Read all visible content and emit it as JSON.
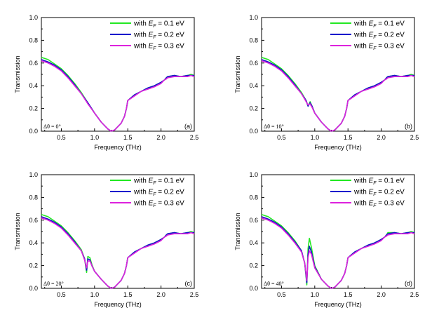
{
  "figure": {
    "y_axis_label": "Transmission",
    "x_axis_label": "Frequency (THz)"
  },
  "legend": {
    "prefix": "with ",
    "symbol": "E",
    "subscript": "F",
    "suffix_template": " = {v} eV"
  },
  "colors": {
    "ef_0_1": "#22e822",
    "ef_0_2": "#1414cc",
    "ef_0_3": "#dd22dd",
    "axis": "#000000"
  },
  "chart_data": [
    {
      "type": "line",
      "panel_label": "(a)",
      "annotation": "Δθ = 0°",
      "xlabel": "Frequency (THz)",
      "ylabel": "Transmission",
      "xlim": [
        0.2,
        2.5
      ],
      "ylim": [
        0.0,
        1.0
      ],
      "x_ticks": [
        "0.5",
        "1.0",
        "1.5",
        "2.0",
        "2.5"
      ],
      "y_ticks": [
        "0.0",
        "0.2",
        "0.4",
        "0.6",
        "0.8",
        "1.0"
      ],
      "legend_position": "top-right",
      "x": [
        0.2,
        0.3,
        0.4,
        0.5,
        0.6,
        0.7,
        0.8,
        0.9,
        1.0,
        1.1,
        1.2,
        1.25,
        1.3,
        1.4,
        1.45,
        1.48,
        1.5,
        1.6,
        1.7,
        1.8,
        1.9,
        2.0,
        2.05,
        2.08,
        2.1,
        2.2,
        2.3,
        2.4,
        2.45,
        2.5
      ],
      "series": [
        {
          "name": "with E_F = 0.1 eV",
          "label_value": "0.1",
          "color_key": "ef_0_1",
          "values": [
            0.65,
            0.63,
            0.59,
            0.55,
            0.49,
            0.42,
            0.34,
            0.25,
            0.16,
            0.08,
            0.02,
            0.0,
            0.01,
            0.07,
            0.13,
            0.2,
            0.27,
            0.32,
            0.35,
            0.38,
            0.4,
            0.43,
            0.45,
            0.47,
            0.48,
            0.49,
            0.48,
            0.49,
            0.5,
            0.49
          ]
        },
        {
          "name": "with E_F = 0.2 eV",
          "label_value": "0.2",
          "color_key": "ef_0_2",
          "values": [
            0.63,
            0.61,
            0.58,
            0.54,
            0.48,
            0.41,
            0.33,
            0.25,
            0.16,
            0.08,
            0.02,
            0.0,
            0.01,
            0.07,
            0.13,
            0.2,
            0.27,
            0.32,
            0.35,
            0.38,
            0.4,
            0.43,
            0.45,
            0.47,
            0.48,
            0.49,
            0.48,
            0.49,
            0.49,
            0.49
          ]
        },
        {
          "name": "with E_F = 0.3 eV",
          "label_value": "0.3",
          "color_key": "ef_0_3",
          "values": [
            0.62,
            0.6,
            0.57,
            0.53,
            0.47,
            0.4,
            0.33,
            0.24,
            0.16,
            0.08,
            0.02,
            0.0,
            0.01,
            0.07,
            0.13,
            0.2,
            0.27,
            0.31,
            0.35,
            0.37,
            0.39,
            0.42,
            0.45,
            0.46,
            0.47,
            0.48,
            0.48,
            0.48,
            0.49,
            0.48
          ]
        }
      ]
    },
    {
      "type": "line",
      "panel_label": "(b)",
      "annotation": "Δθ = 10°",
      "xlabel": "Frequency (THz)",
      "ylabel": "Transmission",
      "xlim": [
        0.2,
        2.5
      ],
      "ylim": [
        0.0,
        1.0
      ],
      "x_ticks": [
        "0.5",
        "1.0",
        "1.5",
        "2.0",
        "2.5"
      ],
      "y_ticks": [
        "0.0",
        "0.2",
        "0.4",
        "0.6",
        "0.8",
        "1.0"
      ],
      "legend_position": "top-right",
      "x": [
        0.2,
        0.3,
        0.4,
        0.5,
        0.6,
        0.7,
        0.8,
        0.87,
        0.9,
        0.93,
        0.96,
        1.0,
        1.1,
        1.2,
        1.25,
        1.3,
        1.4,
        1.45,
        1.48,
        1.5,
        1.6,
        1.7,
        1.8,
        1.9,
        2.0,
        2.05,
        2.08,
        2.1,
        2.2,
        2.3,
        2.4,
        2.45,
        2.5
      ],
      "series": [
        {
          "name": "with E_F = 0.1 eV",
          "label_value": "0.1",
          "color_key": "ef_0_1",
          "values": [
            0.65,
            0.63,
            0.59,
            0.55,
            0.49,
            0.42,
            0.34,
            0.27,
            0.22,
            0.26,
            0.22,
            0.16,
            0.08,
            0.02,
            0.0,
            0.01,
            0.07,
            0.13,
            0.2,
            0.27,
            0.32,
            0.35,
            0.38,
            0.4,
            0.43,
            0.45,
            0.47,
            0.48,
            0.49,
            0.48,
            0.49,
            0.5,
            0.49
          ]
        },
        {
          "name": "with E_F = 0.2 eV",
          "label_value": "0.2",
          "color_key": "ef_0_2",
          "values": [
            0.63,
            0.61,
            0.58,
            0.54,
            0.48,
            0.41,
            0.33,
            0.27,
            0.22,
            0.25,
            0.22,
            0.16,
            0.08,
            0.02,
            0.0,
            0.01,
            0.07,
            0.13,
            0.2,
            0.27,
            0.32,
            0.35,
            0.38,
            0.4,
            0.43,
            0.45,
            0.47,
            0.48,
            0.49,
            0.48,
            0.49,
            0.49,
            0.49
          ]
        },
        {
          "name": "with E_F = 0.3 eV",
          "label_value": "0.3",
          "color_key": "ef_0_3",
          "values": [
            0.62,
            0.6,
            0.57,
            0.53,
            0.47,
            0.4,
            0.33,
            0.26,
            0.23,
            0.24,
            0.21,
            0.16,
            0.08,
            0.02,
            0.0,
            0.01,
            0.07,
            0.13,
            0.2,
            0.27,
            0.31,
            0.35,
            0.37,
            0.39,
            0.42,
            0.45,
            0.46,
            0.47,
            0.48,
            0.48,
            0.48,
            0.49,
            0.48
          ]
        }
      ]
    },
    {
      "type": "line",
      "panel_label": "(c)",
      "annotation": "Δθ = 20°",
      "xlabel": "Frequency (THz)",
      "ylabel": "Transmission",
      "xlim": [
        0.2,
        2.5
      ],
      "ylim": [
        0.0,
        1.0
      ],
      "x_ticks": [
        "0.5",
        "1.0",
        "1.5",
        "2.0",
        "2.5"
      ],
      "y_ticks": [
        "0.0",
        "0.2",
        "0.4",
        "0.6",
        "0.8",
        "1.0"
      ],
      "legend_position": "top-right",
      "x": [
        0.2,
        0.3,
        0.4,
        0.5,
        0.6,
        0.7,
        0.8,
        0.85,
        0.88,
        0.9,
        0.93,
        0.96,
        1.0,
        1.1,
        1.2,
        1.25,
        1.3,
        1.4,
        1.45,
        1.48,
        1.5,
        1.6,
        1.7,
        1.8,
        1.9,
        2.0,
        2.05,
        2.08,
        2.1,
        2.2,
        2.3,
        2.4,
        2.45,
        2.5
      ],
      "series": [
        {
          "name": "with E_F = 0.1 eV",
          "label_value": "0.1",
          "color_key": "ef_0_1",
          "values": [
            0.65,
            0.63,
            0.59,
            0.55,
            0.49,
            0.42,
            0.34,
            0.26,
            0.14,
            0.28,
            0.27,
            0.21,
            0.15,
            0.08,
            0.02,
            0.0,
            0.01,
            0.07,
            0.13,
            0.2,
            0.27,
            0.32,
            0.35,
            0.38,
            0.4,
            0.43,
            0.45,
            0.47,
            0.48,
            0.49,
            0.48,
            0.49,
            0.5,
            0.49
          ]
        },
        {
          "name": "with E_F = 0.2 eV",
          "label_value": "0.2",
          "color_key": "ef_0_2",
          "values": [
            0.63,
            0.61,
            0.58,
            0.54,
            0.48,
            0.41,
            0.33,
            0.26,
            0.16,
            0.26,
            0.25,
            0.2,
            0.15,
            0.08,
            0.02,
            0.0,
            0.01,
            0.07,
            0.13,
            0.2,
            0.27,
            0.32,
            0.35,
            0.38,
            0.4,
            0.43,
            0.45,
            0.47,
            0.48,
            0.49,
            0.48,
            0.49,
            0.49,
            0.49
          ]
        },
        {
          "name": "with E_F = 0.3 eV",
          "label_value": "0.3",
          "color_key": "ef_0_3",
          "values": [
            0.62,
            0.6,
            0.57,
            0.53,
            0.47,
            0.4,
            0.33,
            0.25,
            0.18,
            0.24,
            0.24,
            0.2,
            0.15,
            0.08,
            0.02,
            0.0,
            0.01,
            0.07,
            0.13,
            0.2,
            0.27,
            0.31,
            0.35,
            0.37,
            0.39,
            0.42,
            0.45,
            0.46,
            0.47,
            0.48,
            0.48,
            0.48,
            0.49,
            0.48
          ]
        }
      ]
    },
    {
      "type": "line",
      "panel_label": "(d)",
      "annotation": "Δθ = 40°",
      "xlabel": "Frequency (THz)",
      "ylabel": "Transmission",
      "xlim": [
        0.2,
        2.5
      ],
      "ylim": [
        0.0,
        1.0
      ],
      "x_ticks": [
        "0.5",
        "1.0",
        "1.5",
        "2.0",
        "2.5"
      ],
      "y_ticks": [
        "0.0",
        "0.2",
        "0.4",
        "0.6",
        "0.8",
        "1.0"
      ],
      "legend_position": "top-right",
      "x": [
        0.2,
        0.3,
        0.4,
        0.5,
        0.6,
        0.7,
        0.8,
        0.85,
        0.88,
        0.9,
        0.92,
        0.95,
        1.0,
        1.1,
        1.2,
        1.25,
        1.3,
        1.4,
        1.45,
        1.48,
        1.5,
        1.6,
        1.7,
        1.8,
        1.9,
        2.0,
        2.05,
        2.08,
        2.1,
        2.2,
        2.3,
        2.4,
        2.45,
        2.5
      ],
      "series": [
        {
          "name": "with E_F = 0.1 eV",
          "label_value": "0.1",
          "color_key": "ef_0_1",
          "values": [
            0.65,
            0.63,
            0.59,
            0.55,
            0.49,
            0.42,
            0.33,
            0.22,
            0.03,
            0.35,
            0.44,
            0.36,
            0.2,
            0.08,
            0.02,
            0.0,
            0.01,
            0.07,
            0.13,
            0.2,
            0.27,
            0.32,
            0.35,
            0.38,
            0.4,
            0.43,
            0.45,
            0.47,
            0.49,
            0.49,
            0.48,
            0.49,
            0.5,
            0.49
          ]
        },
        {
          "name": "with E_F = 0.2 eV",
          "label_value": "0.2",
          "color_key": "ef_0_2",
          "values": [
            0.63,
            0.61,
            0.58,
            0.54,
            0.48,
            0.41,
            0.33,
            0.22,
            0.05,
            0.3,
            0.37,
            0.32,
            0.19,
            0.08,
            0.02,
            0.0,
            0.01,
            0.07,
            0.13,
            0.2,
            0.27,
            0.32,
            0.35,
            0.38,
            0.4,
            0.43,
            0.45,
            0.47,
            0.48,
            0.49,
            0.48,
            0.49,
            0.49,
            0.49
          ]
        },
        {
          "name": "with E_F = 0.3 eV",
          "label_value": "0.3",
          "color_key": "ef_0_3",
          "values": [
            0.62,
            0.6,
            0.57,
            0.53,
            0.47,
            0.4,
            0.32,
            0.22,
            0.07,
            0.27,
            0.33,
            0.3,
            0.18,
            0.08,
            0.02,
            0.0,
            0.01,
            0.07,
            0.13,
            0.2,
            0.27,
            0.31,
            0.35,
            0.37,
            0.39,
            0.42,
            0.45,
            0.46,
            0.47,
            0.48,
            0.48,
            0.48,
            0.49,
            0.48
          ]
        }
      ]
    }
  ]
}
